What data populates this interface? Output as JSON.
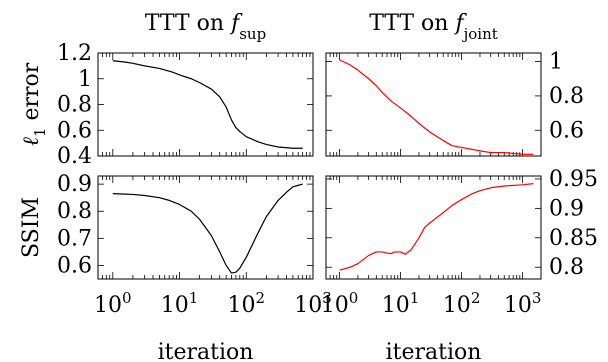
{
  "chart_data": [
    {
      "type": "line",
      "column_title": {
        "text": "TTT on ",
        "sub": "sup"
      },
      "ylabel": {
        "prefix": "ℓ",
        "sub": "1",
        "rest": " error"
      },
      "xlabel": "",
      "x_scale": "log",
      "xlim": [
        0.6,
        1000
      ],
      "ylim": [
        0.4,
        1.2
      ],
      "y_ticks": [
        0.4,
        0.6,
        0.8,
        1,
        1.2
      ],
      "y_tick_labels": [
        "0.4",
        "0.6",
        "0.8",
        "1",
        "1.2"
      ],
      "x_tick_labels": [],
      "series": [
        {
          "color": "#000000",
          "x": [
            1,
            1.5,
            2,
            3,
            5,
            8,
            10,
            15,
            20,
            30,
            40,
            50,
            60,
            70,
            80,
            100,
            150,
            200,
            300,
            500,
            700
          ],
          "y": [
            1.14,
            1.13,
            1.12,
            1.1,
            1.08,
            1.05,
            1.03,
            1.0,
            0.97,
            0.92,
            0.86,
            0.78,
            0.68,
            0.62,
            0.59,
            0.55,
            0.51,
            0.49,
            0.47,
            0.46,
            0.46
          ]
        }
      ]
    },
    {
      "type": "line",
      "column_title": {
        "text": "TTT on ",
        "sub": "joint"
      },
      "ylabel": null,
      "xlabel": "",
      "x_scale": "log",
      "xlim": [
        0.6,
        2000
      ],
      "ylim": [
        0.45,
        1.05
      ],
      "y_ticks": [
        0.6,
        0.8,
        1
      ],
      "y_tick_labels": [
        "0.6",
        "0.8",
        "1"
      ],
      "x_tick_labels": [],
      "series": [
        {
          "color": "#ff0000",
          "x": [
            1,
            1.5,
            2,
            3,
            4,
            5,
            7,
            10,
            15,
            20,
            30,
            50,
            70,
            100,
            200,
            300,
            500,
            1000,
            1500
          ],
          "y": [
            1.01,
            0.98,
            0.95,
            0.9,
            0.86,
            0.82,
            0.77,
            0.73,
            0.68,
            0.64,
            0.59,
            0.54,
            0.51,
            0.5,
            0.48,
            0.47,
            0.47,
            0.46,
            0.46
          ]
        }
      ]
    },
    {
      "type": "line",
      "ylabel": {
        "prefix": "SSIM",
        "sub": "",
        "rest": ""
      },
      "xlabel": "iteration",
      "x_scale": "log",
      "xlim": [
        0.6,
        1000
      ],
      "ylim": [
        0.55,
        0.93
      ],
      "y_ticks": [
        0.6,
        0.7,
        0.8,
        0.9
      ],
      "y_tick_labels": [
        "0.6",
        "0.7",
        "0.8",
        "0.9"
      ],
      "x_ticks": [
        1,
        10,
        100,
        1000
      ],
      "x_tick_labels": [
        {
          "base": "10",
          "exp": "0"
        },
        {
          "base": "10",
          "exp": "1"
        },
        {
          "base": "10",
          "exp": "2"
        },
        {
          "base": "10",
          "exp": "3"
        }
      ],
      "series": [
        {
          "color": "#000000",
          "x": [
            1,
            2,
            3,
            5,
            7,
            10,
            15,
            20,
            30,
            40,
            50,
            60,
            70,
            80,
            100,
            150,
            200,
            300,
            400,
            500,
            700
          ],
          "y": [
            0.865,
            0.862,
            0.858,
            0.85,
            0.84,
            0.825,
            0.8,
            0.77,
            0.71,
            0.65,
            0.6,
            0.572,
            0.575,
            0.59,
            0.63,
            0.72,
            0.78,
            0.84,
            0.87,
            0.89,
            0.9
          ]
        }
      ]
    },
    {
      "type": "line",
      "ylabel": null,
      "xlabel": "iteration",
      "x_scale": "log",
      "xlim": [
        0.6,
        2000
      ],
      "ylim": [
        0.78,
        0.955
      ],
      "y_ticks": [
        0.8,
        0.85,
        0.9,
        0.95
      ],
      "y_tick_labels": [
        "0.8",
        "0.85",
        "0.9",
        "0.95"
      ],
      "x_ticks": [
        1,
        10,
        100,
        1000
      ],
      "x_tick_labels": [
        {
          "base": "10",
          "exp": "0"
        },
        {
          "base": "10",
          "exp": "1"
        },
        {
          "base": "10",
          "exp": "2"
        },
        {
          "base": "10",
          "exp": "3"
        }
      ],
      "series": [
        {
          "color": "#ff0000",
          "x": [
            1,
            1.5,
            2,
            3,
            4,
            5,
            6,
            7,
            8,
            10,
            12,
            15,
            20,
            25,
            30,
            40,
            50,
            70,
            100,
            150,
            200,
            300,
            500,
            1000,
            1500
          ],
          "y": [
            0.795,
            0.8,
            0.806,
            0.82,
            0.826,
            0.826,
            0.824,
            0.823,
            0.826,
            0.826,
            0.822,
            0.83,
            0.85,
            0.868,
            0.875,
            0.885,
            0.893,
            0.905,
            0.915,
            0.925,
            0.93,
            0.935,
            0.938,
            0.94,
            0.942
          ]
        }
      ]
    }
  ]
}
